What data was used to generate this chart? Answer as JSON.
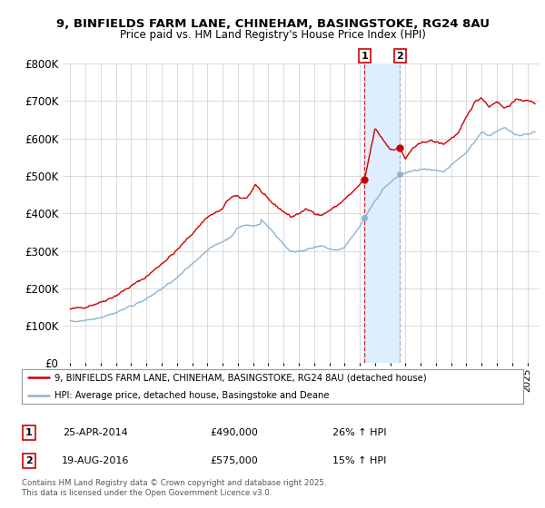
{
  "title_line1": "9, BINFIELDS FARM LANE, CHINEHAM, BASINGSTOKE, RG24 8AU",
  "title_line2": "Price paid vs. HM Land Registry's House Price Index (HPI)",
  "sale1_date": "25-APR-2014",
  "sale1_price": 490000,
  "sale1_hpi_pct": "26% ↑ HPI",
  "sale2_date": "19-AUG-2016",
  "sale2_price": 575000,
  "sale2_hpi_pct": "15% ↑ HPI",
  "legend_line1": "9, BINFIELDS FARM LANE, CHINEHAM, BASINGSTOKE, RG24 8AU (detached house)",
  "legend_line2": "HPI: Average price, detached house, Basingstoke and Deane",
  "footnote": "Contains HM Land Registry data © Crown copyright and database right 2025.\nThis data is licensed under the Open Government Licence v3.0.",
  "red_color": "#cc0000",
  "blue_color": "#89b4d4",
  "vline1_color": "#cc0000",
  "vline2_color": "#99aabb",
  "span_color": "#ddeeff",
  "marker1_year": 2014.32,
  "marker2_year": 2016.63,
  "ylim_max": 800000,
  "xlim_min": 1994.5,
  "xlim_max": 2025.8,
  "background_color": "#ffffff",
  "plot_bg_color": "#ffffff",
  "grid_color": "#cccccc"
}
